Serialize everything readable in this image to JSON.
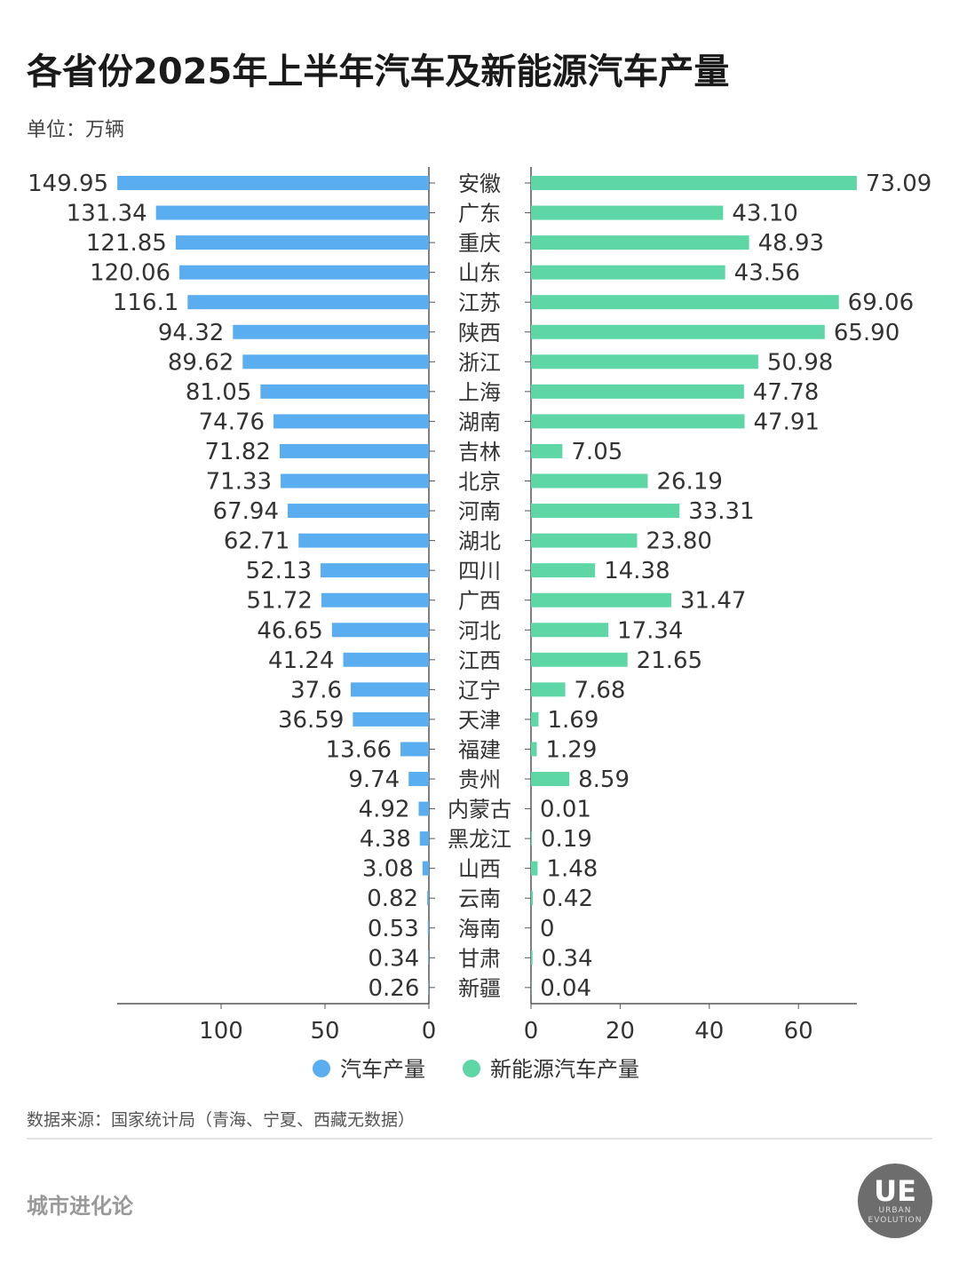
{
  "header": {
    "title": "各省份2025年上半年汽车及新能源汽车产量",
    "unit": "单位：万辆"
  },
  "chart_data": {
    "type": "bar",
    "orientation": "horizontal",
    "layout": "back-to-back",
    "title": "各省份2025年上半年汽车及新能源汽车产量",
    "categories": [
      "安徽",
      "广东",
      "重庆",
      "山东",
      "江苏",
      "陕西",
      "浙江",
      "上海",
      "湖南",
      "吉林",
      "北京",
      "河南",
      "湖北",
      "四川",
      "广西",
      "河北",
      "江西",
      "辽宁",
      "天津",
      "福建",
      "贵州",
      "内蒙古",
      "黑龙江",
      "山西",
      "云南",
      "海南",
      "甘肃",
      "新疆"
    ],
    "series": [
      {
        "name": "汽车产量",
        "color": "#5aaef0",
        "side": "left",
        "xlim": [
          150,
          0
        ],
        "ticks": [
          100,
          50,
          0
        ],
        "values": [
          149.95,
          131.34,
          121.85,
          120.06,
          116.1,
          94.32,
          89.62,
          81.05,
          74.76,
          71.82,
          71.33,
          67.94,
          62.71,
          52.13,
          51.72,
          46.65,
          41.24,
          37.6,
          36.59,
          13.66,
          9.74,
          4.92,
          4.38,
          3.08,
          0.82,
          0.53,
          0.34,
          0.26
        ],
        "labels": [
          "149.95",
          "131.34",
          "121.85",
          "120.06",
          "116.1",
          "94.32",
          "89.62",
          "81.05",
          "74.76",
          "71.82",
          "71.33",
          "67.94",
          "62.71",
          "52.13",
          "51.72",
          "46.65",
          "41.24",
          "37.6",
          "36.59",
          "13.66",
          "9.74",
          "4.92",
          "4.38",
          "3.08",
          "0.82",
          "0.53",
          "0.34",
          "0.26"
        ]
      },
      {
        "name": "新能源汽车产量",
        "color": "#5ed6a6",
        "side": "right",
        "xlim": [
          0,
          73
        ],
        "ticks": [
          0,
          20,
          40,
          60
        ],
        "values": [
          73.09,
          43.1,
          48.93,
          43.56,
          69.06,
          65.9,
          50.98,
          47.78,
          47.91,
          7.05,
          26.19,
          33.31,
          23.8,
          14.38,
          31.47,
          17.34,
          21.65,
          7.68,
          1.69,
          1.29,
          8.59,
          0.01,
          0.19,
          1.48,
          0.42,
          0,
          0.34,
          0.04
        ],
        "labels": [
          "73.09",
          "43.10",
          "48.93",
          "43.56",
          "69.06",
          "65.90",
          "50.98",
          "47.78",
          "47.91",
          "7.05",
          "26.19",
          "33.31",
          "23.80",
          "14.38",
          "31.47",
          "17.34",
          "21.65",
          "7.68",
          "1.69",
          "1.29",
          "8.59",
          "0.01",
          "0.19",
          "1.48",
          "0.42",
          "0",
          "0.34",
          "0.04"
        ]
      }
    ],
    "legend_position": "bottom",
    "grid": false
  },
  "footer": {
    "source": "数据来源：国家统计局（青海、宁夏、西藏无数据）",
    "brand": "城市进化论",
    "logo_text": "UE",
    "logo_subtext": "URBAN EVOLUTION"
  }
}
